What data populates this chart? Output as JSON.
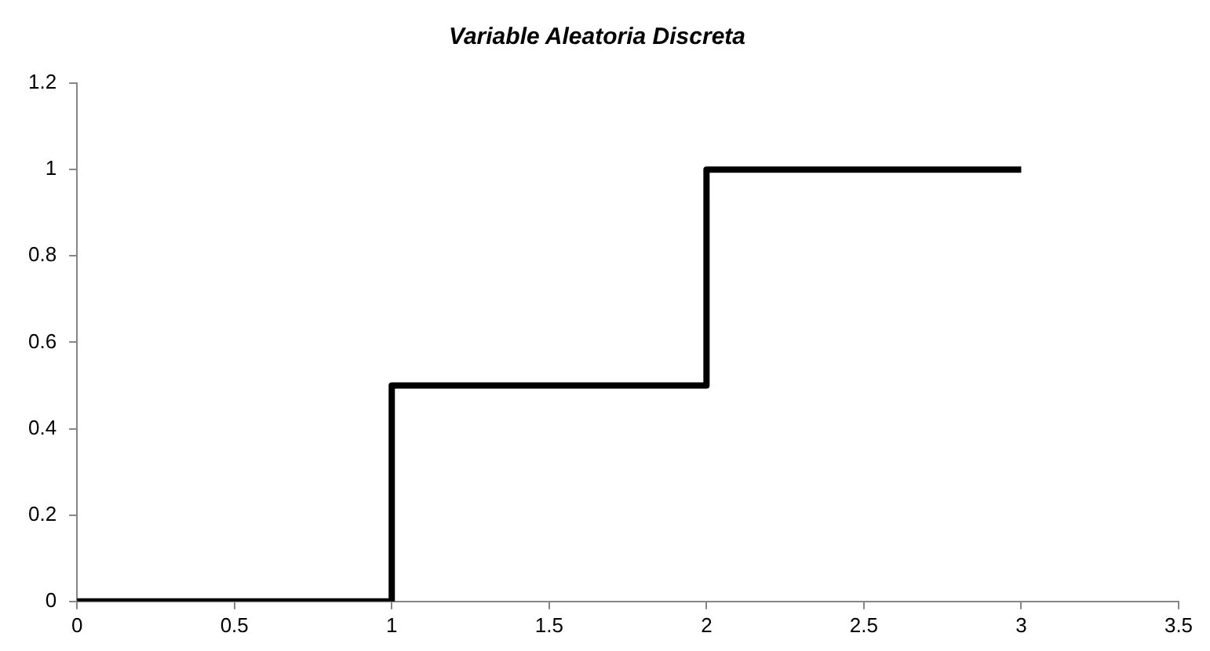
{
  "chart_data": {
    "type": "step",
    "title": "Variable Aleatoria Discreta",
    "x": [
      0,
      1,
      2,
      3
    ],
    "values": [
      0,
      0.5,
      1,
      1
    ],
    "color": "#000000",
    "xlim": [
      0,
      3.5
    ],
    "xticks": [
      0,
      0.5,
      1,
      1.5,
      2,
      2.5,
      3,
      3.5
    ],
    "ylim": [
      0,
      1.2
    ],
    "yticks": [
      0,
      0.2,
      0.4,
      0.6,
      0.8,
      1,
      1.2
    ],
    "marker": "none",
    "line_style": "solid"
  }
}
